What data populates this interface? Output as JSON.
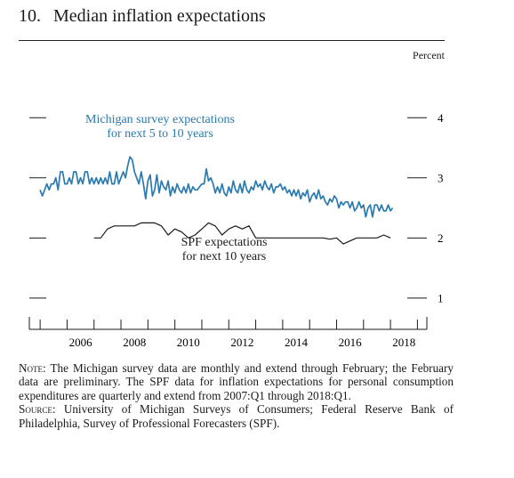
{
  "figure": {
    "number": "10.",
    "title": "Median inflation expectations",
    "unit": "Percent"
  },
  "chart_data": {
    "type": "line",
    "title": "Median inflation expectations",
    "ylabel": "Percent",
    "ylim": [
      0.85,
      4.3
    ],
    "xlim": [
      2004.6,
      2019.35
    ],
    "yticks": [
      1,
      2,
      3,
      4
    ],
    "xticks_labeled": [
      "2006",
      "2008",
      "2010",
      "2012",
      "2014",
      "2016",
      "2018"
    ],
    "grid": false,
    "series": [
      {
        "name": "Michigan survey expectations for next 5 to 10 years",
        "label_lines": [
          "Michigan survey expectations",
          "for next 5 to 10 years"
        ],
        "color": "#2a7ab0",
        "frequency": "monthly",
        "points": [
          [
            "2005-01",
            2.8
          ],
          [
            "2005-02",
            2.7
          ],
          [
            "2005-03",
            2.8
          ],
          [
            "2005-04",
            2.9
          ],
          [
            "2005-05",
            2.8
          ],
          [
            "2005-06",
            2.9
          ],
          [
            "2005-07",
            2.9
          ],
          [
            "2005-08",
            3.0
          ],
          [
            "2005-09",
            2.8
          ],
          [
            "2005-10",
            3.1
          ],
          [
            "2005-11",
            3.1
          ],
          [
            "2005-12",
            2.9
          ],
          [
            "2006-01",
            2.9
          ],
          [
            "2006-02",
            3.0
          ],
          [
            "2006-03",
            2.9
          ],
          [
            "2006-04",
            3.1
          ],
          [
            "2006-05",
            3.1
          ],
          [
            "2006-06",
            2.9
          ],
          [
            "2006-07",
            3.0
          ],
          [
            "2006-08",
            2.9
          ],
          [
            "2006-09",
            3.1
          ],
          [
            "2006-10",
            3.1
          ],
          [
            "2006-11",
            2.9
          ],
          [
            "2006-12",
            3.0
          ],
          [
            "2007-01",
            2.9
          ],
          [
            "2007-02",
            3.0
          ],
          [
            "2007-03",
            2.9
          ],
          [
            "2007-04",
            3.0
          ],
          [
            "2007-05",
            2.9
          ],
          [
            "2007-06",
            3.0
          ],
          [
            "2007-07",
            2.9
          ],
          [
            "2007-08",
            3.1
          ],
          [
            "2007-09",
            2.9
          ],
          [
            "2007-10",
            2.9
          ],
          [
            "2007-11",
            3.1
          ],
          [
            "2007-12",
            2.9
          ],
          [
            "2008-01",
            3.0
          ],
          [
            "2008-02",
            3.1
          ],
          [
            "2008-03",
            3.0
          ],
          [
            "2008-04",
            3.2
          ],
          [
            "2008-05",
            3.35
          ],
          [
            "2008-06",
            3.3
          ],
          [
            "2008-07",
            3.1
          ],
          [
            "2008-08",
            3.0
          ],
          [
            "2008-09",
            2.9
          ],
          [
            "2008-10",
            3.1
          ],
          [
            "2008-11",
            2.9
          ],
          [
            "2008-12",
            2.65
          ],
          [
            "2009-01",
            2.95
          ],
          [
            "2009-02",
            3.05
          ],
          [
            "2009-03",
            2.7
          ],
          [
            "2009-04",
            2.8
          ],
          [
            "2009-05",
            3.05
          ],
          [
            "2009-06",
            2.75
          ],
          [
            "2009-07",
            2.95
          ],
          [
            "2009-08",
            2.85
          ],
          [
            "2009-09",
            2.8
          ],
          [
            "2009-10",
            2.95
          ],
          [
            "2009-11",
            2.7
          ],
          [
            "2009-12",
            2.85
          ],
          [
            "2010-01",
            2.75
          ],
          [
            "2010-02",
            2.9
          ],
          [
            "2010-03",
            2.8
          ],
          [
            "2010-04",
            2.75
          ],
          [
            "2010-05",
            2.85
          ],
          [
            "2010-06",
            2.75
          ],
          [
            "2010-07",
            2.9
          ],
          [
            "2010-08",
            2.75
          ],
          [
            "2010-09",
            2.85
          ],
          [
            "2010-10",
            2.8
          ],
          [
            "2010-11",
            2.8
          ],
          [
            "2010-12",
            2.85
          ],
          [
            "2011-01",
            2.9
          ],
          [
            "2011-02",
            2.9
          ],
          [
            "2011-03",
            3.15
          ],
          [
            "2011-04",
            2.95
          ],
          [
            "2011-05",
            3.0
          ],
          [
            "2011-06",
            2.9
          ],
          [
            "2011-07",
            2.75
          ],
          [
            "2011-08",
            2.85
          ],
          [
            "2011-09",
            2.75
          ],
          [
            "2011-10",
            2.9
          ],
          [
            "2011-11",
            2.75
          ],
          [
            "2011-12",
            2.7
          ],
          [
            "2012-01",
            2.85
          ],
          [
            "2012-02",
            2.75
          ],
          [
            "2012-03",
            2.95
          ],
          [
            "2012-04",
            2.8
          ],
          [
            "2012-05",
            2.75
          ],
          [
            "2012-06",
            2.9
          ],
          [
            "2012-07",
            2.75
          ],
          [
            "2012-08",
            2.95
          ],
          [
            "2012-09",
            2.8
          ],
          [
            "2012-10",
            2.75
          ],
          [
            "2012-11",
            2.85
          ],
          [
            "2012-12",
            2.8
          ],
          [
            "2013-01",
            2.95
          ],
          [
            "2013-02",
            2.85
          ],
          [
            "2013-03",
            2.9
          ],
          [
            "2013-04",
            2.8
          ],
          [
            "2013-05",
            2.95
          ],
          [
            "2013-06",
            2.85
          ],
          [
            "2013-07",
            2.8
          ],
          [
            "2013-08",
            2.9
          ],
          [
            "2013-09",
            2.75
          ],
          [
            "2013-10",
            2.85
          ],
          [
            "2013-11",
            2.85
          ],
          [
            "2013-12",
            2.9
          ],
          [
            "2014-01",
            2.8
          ],
          [
            "2014-02",
            2.85
          ],
          [
            "2014-03",
            2.75
          ],
          [
            "2014-04",
            2.8
          ],
          [
            "2014-05",
            2.7
          ],
          [
            "2014-06",
            2.8
          ],
          [
            "2014-07",
            2.7
          ],
          [
            "2014-08",
            2.8
          ],
          [
            "2014-09",
            2.65
          ],
          [
            "2014-10",
            2.75
          ],
          [
            "2014-11",
            2.7
          ],
          [
            "2014-12",
            2.8
          ],
          [
            "2015-01",
            2.6
          ],
          [
            "2015-02",
            2.7
          ],
          [
            "2015-03",
            2.75
          ],
          [
            "2015-04",
            2.65
          ],
          [
            "2015-05",
            2.8
          ],
          [
            "2015-06",
            2.65
          ],
          [
            "2015-07",
            2.7
          ],
          [
            "2015-08",
            2.6
          ],
          [
            "2015-09",
            2.55
          ],
          [
            "2015-10",
            2.65
          ],
          [
            "2015-11",
            2.6
          ],
          [
            "2015-12",
            2.7
          ],
          [
            "2016-01",
            2.65
          ],
          [
            "2016-02",
            2.5
          ],
          [
            "2016-03",
            2.6
          ],
          [
            "2016-04",
            2.55
          ],
          [
            "2016-05",
            2.6
          ],
          [
            "2016-06",
            2.6
          ],
          [
            "2016-07",
            2.5
          ],
          [
            "2016-08",
            2.6
          ],
          [
            "2016-09",
            2.45
          ],
          [
            "2016-10",
            2.5
          ],
          [
            "2016-11",
            2.6
          ],
          [
            "2016-12",
            2.5
          ],
          [
            "2017-01",
            2.55
          ],
          [
            "2017-02",
            2.35
          ],
          [
            "2017-03",
            2.5
          ],
          [
            "2017-04",
            2.55
          ],
          [
            "2017-05",
            2.35
          ],
          [
            "2017-06",
            2.55
          ],
          [
            "2017-07",
            2.55
          ],
          [
            "2017-08",
            2.45
          ],
          [
            "2017-09",
            2.55
          ],
          [
            "2017-10",
            2.45
          ],
          [
            "2017-11",
            2.45
          ],
          [
            "2017-12",
            2.55
          ],
          [
            "2018-01",
            2.45
          ],
          [
            "2018-02",
            2.5
          ]
        ]
      },
      {
        "name": "SPF expectations for next 10 years",
        "label_lines": [
          "SPF expectations",
          "for next 10 years"
        ],
        "color": "#1a1a1a",
        "frequency": "quarterly",
        "points": [
          [
            "2007-01",
            2.0
          ],
          [
            "2007-04",
            2.0
          ],
          [
            "2007-07",
            2.15
          ],
          [
            "2007-10",
            2.2
          ],
          [
            "2008-01",
            2.2
          ],
          [
            "2008-04",
            2.2
          ],
          [
            "2008-07",
            2.2
          ],
          [
            "2008-10",
            2.25
          ],
          [
            "2009-01",
            2.25
          ],
          [
            "2009-04",
            2.25
          ],
          [
            "2009-07",
            2.2
          ],
          [
            "2009-10",
            2.05
          ],
          [
            "2010-01",
            2.15
          ],
          [
            "2010-04",
            2.1
          ],
          [
            "2010-07",
            2.0
          ],
          [
            "2010-10",
            2.05
          ],
          [
            "2011-01",
            2.15
          ],
          [
            "2011-04",
            2.25
          ],
          [
            "2011-07",
            2.2
          ],
          [
            "2011-10",
            2.05
          ],
          [
            "2012-01",
            2.15
          ],
          [
            "2012-04",
            2.2
          ],
          [
            "2012-07",
            2.15
          ],
          [
            "2012-10",
            2.2
          ],
          [
            "2013-01",
            2.0
          ],
          [
            "2013-04",
            2.0
          ],
          [
            "2013-07",
            2.0
          ],
          [
            "2013-10",
            2.0
          ],
          [
            "2014-01",
            2.0
          ],
          [
            "2014-04",
            2.0
          ],
          [
            "2014-07",
            2.0
          ],
          [
            "2014-10",
            2.0
          ],
          [
            "2015-01",
            2.0
          ],
          [
            "2015-04",
            2.0
          ],
          [
            "2015-07",
            2.0
          ],
          [
            "2015-10",
            1.98
          ],
          [
            "2016-01",
            2.0
          ],
          [
            "2016-04",
            1.9
          ],
          [
            "2016-07",
            1.95
          ],
          [
            "2016-10",
            2.0
          ],
          [
            "2017-01",
            2.0
          ],
          [
            "2017-04",
            2.0
          ],
          [
            "2017-07",
            2.0
          ],
          [
            "2017-10",
            2.05
          ],
          [
            "2018-01",
            2.0
          ]
        ]
      }
    ]
  },
  "notes": {
    "note_label": "Note:",
    "note_text": "The Michigan survey data are monthly and extend through February; the February data are preliminary. The SPF data for inflation expectations for personal consumption expenditures are quarterly and extend from 2007:Q1 through 2018:Q1.",
    "source_label": "Source:",
    "source_text": "University of Michigan Surveys of Consumers; Federal Reserve Bank of Philadelphia, Survey of Professional Forecasters (SPF)."
  }
}
